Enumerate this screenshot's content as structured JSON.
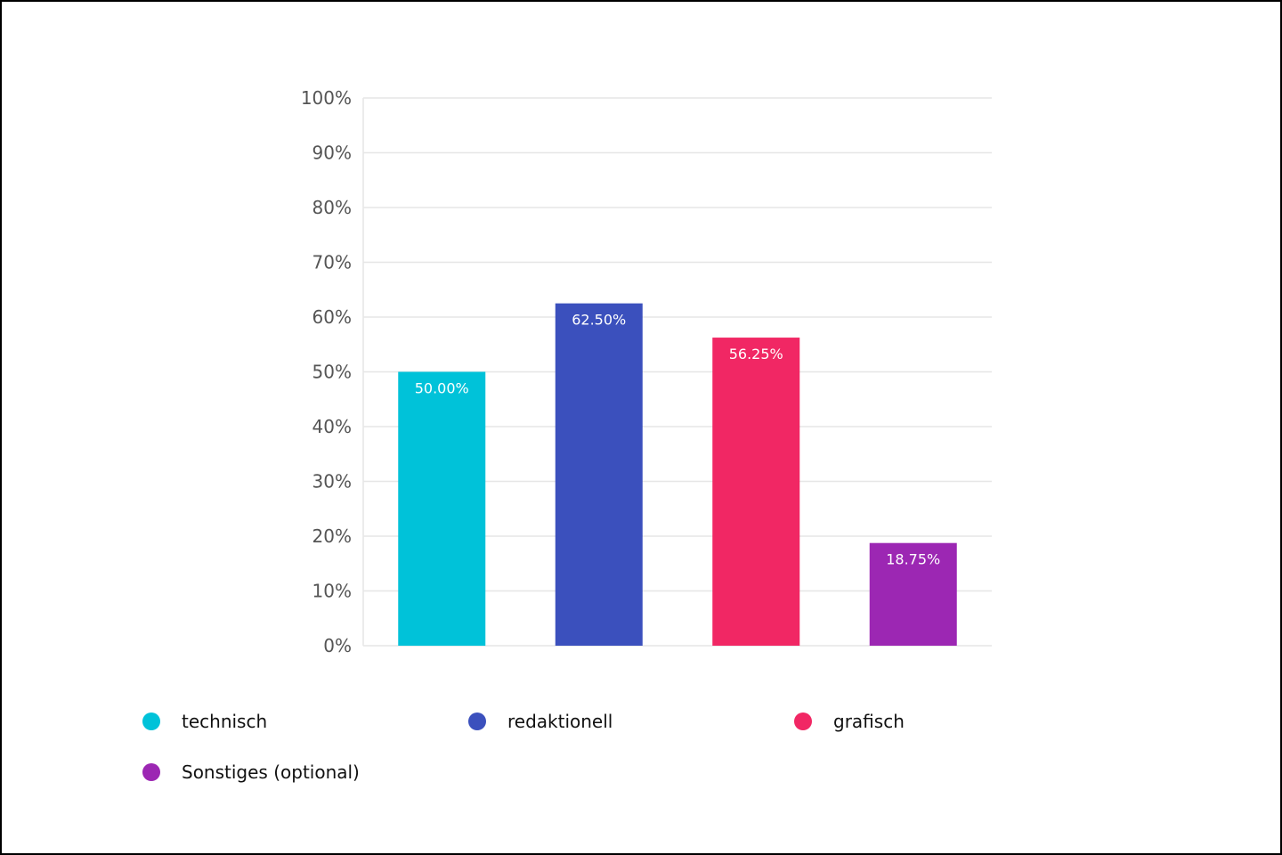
{
  "chart_data": {
    "type": "bar",
    "categories": [
      "technisch",
      "redaktionell",
      "grafisch",
      "Sonstiges (optional)"
    ],
    "values": [
      50.0,
      62.5,
      56.25,
      18.75
    ],
    "data_labels": [
      "50.00%",
      "62.50%",
      "56.25%",
      "18.75%"
    ],
    "colors": [
      "#00c2d9",
      "#3b50bd",
      "#f12764",
      "#9c27b3"
    ],
    "ylim": [
      0,
      100
    ],
    "yticks": [
      "0%",
      "10%",
      "20%",
      "30%",
      "40%",
      "50%",
      "60%",
      "70%",
      "80%",
      "90%",
      "100%"
    ],
    "grid": true,
    "legend_position": "bottom"
  },
  "legend": {
    "items": [
      {
        "label": "technisch",
        "color": "#00c2d9"
      },
      {
        "label": "redaktionell",
        "color": "#3b50bd"
      },
      {
        "label": "grafisch",
        "color": "#f12764"
      },
      {
        "label": "Sonstiges (optional)",
        "color": "#9c27b3"
      }
    ]
  }
}
